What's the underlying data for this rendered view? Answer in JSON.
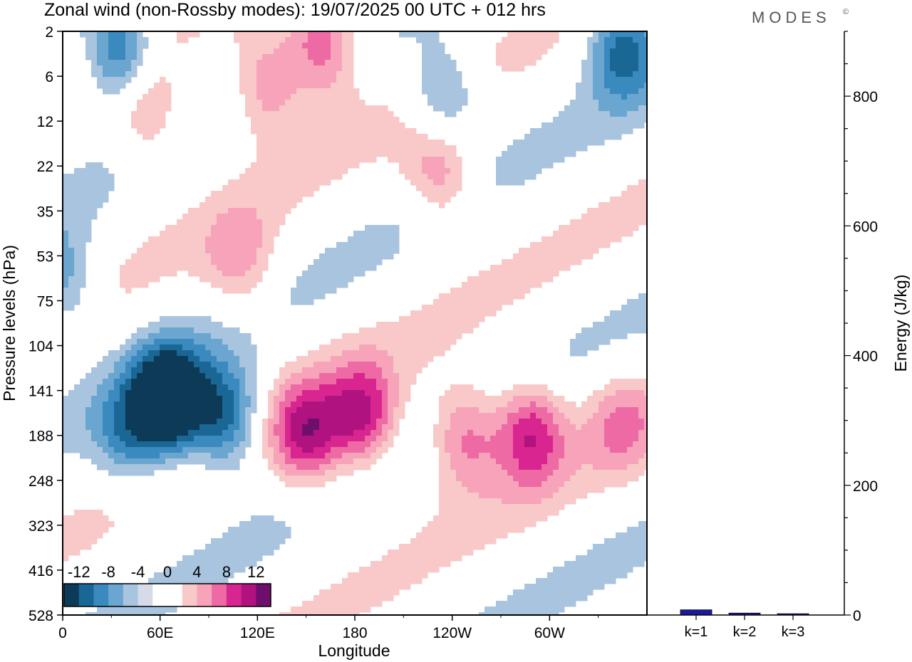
{
  "chart_data": [
    {
      "type": "heatmap",
      "title": "Zonal wind (non-Rossby modes):  19/07/2025  00 UTC  + 012 hrs",
      "brand": "MODES",
      "brand_mark": "©",
      "xlabel": "Longitude",
      "ylabel": "Pressure levels (hPa)",
      "x_ticks": [
        "0",
        "60E",
        "120E",
        "180",
        "120W",
        "60W"
      ],
      "x_tick_values": [
        0,
        60,
        120,
        180,
        240,
        300
      ],
      "xlim": [
        0,
        360
      ],
      "y_ticks": [
        "2",
        "6",
        "12",
        "22",
        "35",
        "53",
        "75",
        "104",
        "141",
        "188",
        "248",
        "323",
        "416",
        "528"
      ],
      "colorbar_labels": [
        "-12",
        "-8",
        "-4",
        "0",
        "4",
        "8",
        "12"
      ],
      "colorbar_colors": [
        "#0d3b57",
        "#1a6796",
        "#3a8abf",
        "#6aa6cf",
        "#a8c4df",
        "#d6dbea",
        "#ffffff",
        "#ffffff",
        "#f9c9c9",
        "#f7a3ba",
        "#ee6aa4",
        "#d9258f",
        "#b01380",
        "#6e0f6e"
      ],
      "features": [
        {
          "lon": 65,
          "lev": 8.2,
          "value": -16
        },
        {
          "lon": 100,
          "lev": 8.6,
          "value": -10
        },
        {
          "lon": 40,
          "lev": 9.0,
          "value": -6
        },
        {
          "lon": 150,
          "lev": 9.0,
          "value": 10
        },
        {
          "lon": 185,
          "lev": 8.6,
          "value": 10
        },
        {
          "lon": 247,
          "lev": 9.0,
          "value": 8
        },
        {
          "lon": 288,
          "lev": 8.9,
          "value": 10
        },
        {
          "lon": 344,
          "lev": 8.7,
          "value": 5
        },
        {
          "lon": 35,
          "lev": 0.5,
          "value": -10
        },
        {
          "lon": 345,
          "lev": 0.3,
          "value": -9
        },
        {
          "lon": 160,
          "lev": 0.3,
          "value": 9
        },
        {
          "lon": 125,
          "lev": 1.2,
          "value": 7
        },
        {
          "lon": 52,
          "lev": 1.8,
          "value": 6
        },
        {
          "lon": 235,
          "lev": 1.5,
          "value": -7
        },
        {
          "lon": 233,
          "lev": 3.1,
          "value": 7
        },
        {
          "lon": 110,
          "lev": 5.2,
          "value": 5
        },
        {
          "lon": 0,
          "lev": 5.6,
          "value": -6
        }
      ]
    },
    {
      "type": "bar",
      "ylabel": "Energy (J/kg)",
      "categories": [
        "k=1",
        "k=2",
        "k=3"
      ],
      "values": [
        8,
        3,
        2
      ],
      "ylim": [
        0,
        900
      ],
      "y_ticks": [
        "0",
        "200",
        "400",
        "600",
        "800"
      ],
      "y_tick_values": [
        0,
        200,
        400,
        600,
        800
      ],
      "bar_color": "#1a1aa0"
    }
  ]
}
